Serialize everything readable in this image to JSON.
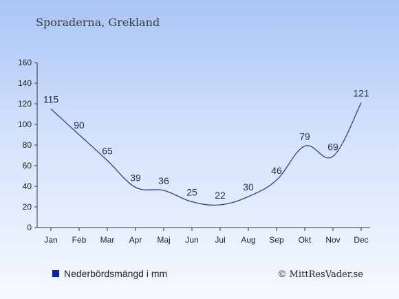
{
  "chart_data": {
    "type": "line",
    "title": "Sporaderna, Grekland",
    "categories": [
      "Jan",
      "Feb",
      "Mar",
      "Apr",
      "Maj",
      "Jun",
      "Jul",
      "Aug",
      "Sep",
      "Okt",
      "Nov",
      "Dec"
    ],
    "series": [
      {
        "name": "Nederbördsmängd i mm",
        "values": [
          115,
          90,
          65,
          39,
          36,
          25,
          22,
          30,
          46,
          79,
          69,
          121
        ]
      }
    ],
    "ylim": [
      0,
      160
    ],
    "yticks": [
      0,
      20,
      40,
      60,
      80,
      100,
      120,
      140,
      160
    ],
    "grid": false,
    "legend": "bottom-left"
  },
  "credit": "© MittResVader.se",
  "colors": {
    "line": "#2e3f8f",
    "legend_marker": "#0a1ea8",
    "label": "#1f2d5a"
  }
}
